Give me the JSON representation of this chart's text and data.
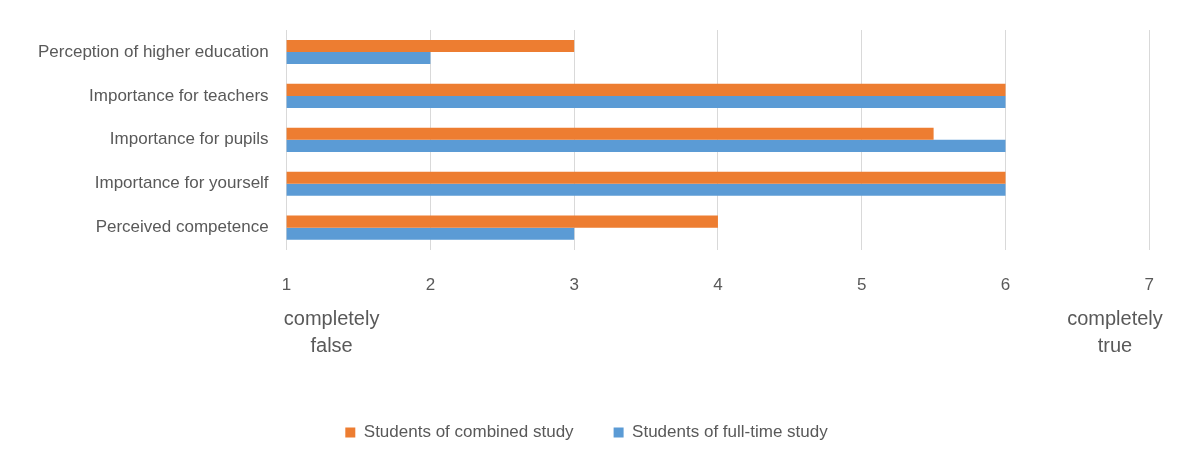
{
  "chart_data": {
    "type": "bar",
    "orientation": "horizontal",
    "categories": [
      "Perception of higher education",
      "Importance for teachers",
      "Importance for pupils",
      "Importance for yourself",
      "Perceived competence"
    ],
    "series": [
      {
        "name": "Students of combined study",
        "color": "#ed7d31",
        "values": [
          3,
          6,
          5.5,
          6,
          4
        ]
      },
      {
        "name": "Students of full-time study",
        "color": "#5b9bd5",
        "values": [
          2,
          6,
          6,
          6,
          3
        ]
      }
    ],
    "xlim": [
      1,
      7
    ],
    "xticks": [
      1,
      2,
      3,
      4,
      5,
      6,
      7
    ],
    "grid": "x",
    "legend": "bottom",
    "annotations": [
      "completely false",
      "completely true"
    ]
  }
}
